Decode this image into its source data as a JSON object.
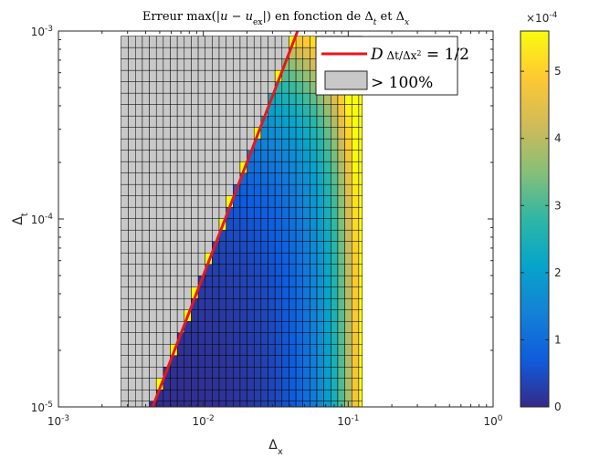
{
  "chart_data": {
    "type": "heatmap",
    "title": "Erreur max(|u − u_ex|) en fonction de Δ_t et Δ_x",
    "xlabel": "Δx",
    "ylabel": "Δt",
    "xscale": "log",
    "yscale": "log",
    "xlim": [
      0.001,
      1
    ],
    "ylim": [
      1e-05,
      0.001
    ],
    "x_ticks": [
      "10^-3",
      "10^-2",
      "10^-1",
      "10^0"
    ],
    "y_ticks": [
      "10^-5",
      "10^-4",
      "10^-3"
    ],
    "grid": false,
    "dx_min": 0.0027,
    "dx_max": 0.125,
    "dt_min": 1e-05,
    "dt_max": 0.001,
    "stability_coefficient": 0.5,
    "diffusion_D": 1,
    "stability_line": {
      "legend": "D Δt/Δx² = 1/2",
      "color": "#e8161b"
    },
    "unstable_cells": {
      "legend": "> 100%",
      "color": "#c8c8c8",
      "edge_color": "#ffff00"
    },
    "legend_location": "top-right",
    "colorbar": {
      "min": 0,
      "max": 0.00056,
      "multiplier_label": "×10^-4",
      "tick_values": [
        0,
        1,
        2,
        3,
        4,
        5
      ],
      "colormap": "parula"
    },
    "colormap_colors": [
      "#352a87",
      "#0f5cdd",
      "#1481d6",
      "#06a4ca",
      "#2eb7a4",
      "#87bf77",
      "#d1bb59",
      "#fec832",
      "#f9fb0e"
    ]
  }
}
